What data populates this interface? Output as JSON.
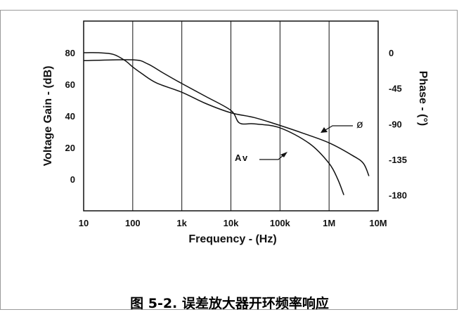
{
  "chart_data": {
    "type": "line",
    "x_scale": "log",
    "x_ticks": [
      10,
      100,
      1000,
      10000,
      100000,
      1000000,
      10000000
    ],
    "x_tick_labels": [
      "10",
      "100",
      "1k",
      "10k",
      "100k",
      "1M",
      "10M"
    ],
    "xlabel": "Frequency  -  (Hz)",
    "xlim": [
      10,
      10000000
    ],
    "ylabel_left": "Voltage  Gain  -  (dB)",
    "ylim_left": [
      -20,
      100
    ],
    "y_ticks_left": [
      0,
      20,
      40,
      60,
      80
    ],
    "ylabel_right": "Phase  -  (°)",
    "ylim_right": [
      -200,
      40
    ],
    "y_ticks_right": [
      0,
      -45,
      -90,
      -135,
      -180
    ],
    "grid": "vertical",
    "series": [
      {
        "name": "Av",
        "axis": "left",
        "points": [
          [
            10,
            80
          ],
          [
            20,
            80
          ],
          [
            40,
            79
          ],
          [
            70,
            75
          ],
          [
            100,
            71
          ],
          [
            150,
            67
          ],
          [
            300,
            61
          ],
          [
            1000,
            55
          ],
          [
            3000,
            48
          ],
          [
            10000,
            42
          ],
          [
            30000,
            39
          ],
          [
            100000,
            34
          ],
          [
            300000,
            29
          ],
          [
            1000000,
            23
          ],
          [
            3000000,
            15
          ],
          [
            5000000,
            10
          ],
          [
            6500000,
            2
          ]
        ]
      },
      {
        "name": "ø",
        "axis": "right",
        "points": [
          [
            10,
            -10
          ],
          [
            100,
            -9
          ],
          [
            200,
            -14
          ],
          [
            400,
            -25
          ],
          [
            1000,
            -39
          ],
          [
            3000,
            -55
          ],
          [
            10000,
            -73
          ],
          [
            15000,
            -89
          ],
          [
            30000,
            -90
          ],
          [
            100000,
            -95
          ],
          [
            400000,
            -115
          ],
          [
            1000000,
            -140
          ],
          [
            1500000,
            -160
          ],
          [
            2000000,
            -180
          ]
        ]
      }
    ],
    "annotations": [
      {
        "text": "Av",
        "target": "Av"
      },
      {
        "text": "ø",
        "target": "ø"
      }
    ]
  },
  "caption": "图 5-2. 误差放大器开环频率响应"
}
